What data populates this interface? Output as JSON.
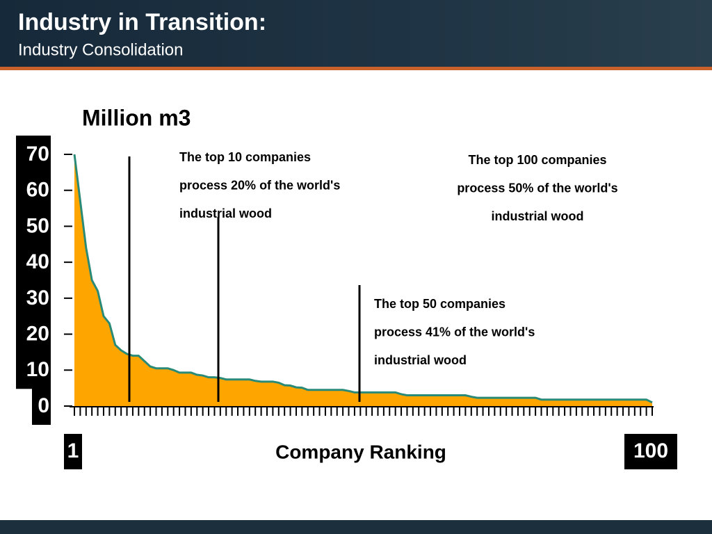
{
  "header": {
    "title": "Industry in Transition:",
    "subtitle": "Industry Consolidation"
  },
  "chart_data": {
    "type": "area",
    "y_label": "Million m3",
    "x_label": "Company Ranking",
    "x": [
      1,
      2,
      3,
      4,
      5,
      6,
      7,
      8,
      9,
      10,
      11,
      12,
      13,
      14,
      15,
      16,
      17,
      18,
      19,
      20,
      21,
      22,
      23,
      24,
      25,
      26,
      27,
      28,
      29,
      30,
      31,
      32,
      33,
      34,
      35,
      36,
      37,
      38,
      39,
      40,
      41,
      42,
      43,
      44,
      45,
      46,
      47,
      48,
      49,
      50,
      51,
      52,
      53,
      54,
      55,
      56,
      57,
      58,
      59,
      60,
      61,
      62,
      63,
      64,
      65,
      66,
      67,
      68,
      69,
      70,
      71,
      72,
      73,
      74,
      75,
      76,
      77,
      78,
      79,
      80,
      81,
      82,
      83,
      84,
      85,
      86,
      87,
      88,
      89,
      90,
      91,
      92,
      93,
      94,
      95,
      96,
      97,
      98,
      99,
      100
    ],
    "values": [
      70,
      57,
      44,
      35,
      32,
      25,
      23,
      17,
      15.5,
      14.5,
      14,
      14,
      12.5,
      11,
      10.5,
      10.5,
      10.5,
      10,
      9.3,
      9.3,
      9.3,
      8.7,
      8.5,
      8,
      8,
      7.8,
      7.4,
      7.4,
      7.4,
      7.4,
      7.4,
      7,
      6.8,
      6.8,
      6.8,
      6.5,
      5.8,
      5.7,
      5.2,
      5.1,
      4.5,
      4.5,
      4.5,
      4.5,
      4.5,
      4.5,
      4.5,
      4.2,
      3.8,
      3.8,
      3.8,
      3.8,
      3.8,
      3.8,
      3.8,
      3.8,
      3.3,
      3,
      3,
      3,
      3,
      3,
      3,
      3,
      3,
      3,
      3,
      3,
      2.6,
      2.3,
      2.3,
      2.3,
      2.3,
      2.3,
      2.3,
      2.3,
      2.3,
      2.3,
      2.3,
      2.3,
      1.8,
      1.8,
      1.8,
      1.8,
      1.8,
      1.8,
      1.8,
      1.8,
      1.8,
      1.8,
      1.8,
      1.8,
      1.8,
      1.8,
      1.8,
      1.8,
      1.8,
      1.8,
      1.8,
      1
    ],
    "color": "#ffa500",
    "line_color": "#2a8a78",
    "xlim": [
      1,
      100
    ],
    "xticks": [
      1,
      100
    ],
    "ylim": [
      0,
      70
    ],
    "yticks": [
      0,
      10,
      20,
      30,
      40,
      50,
      60,
      70
    ],
    "annotations": [
      [
        "The top 10 companies",
        "process 20% of the world's",
        "industrial wood"
      ],
      [
        "The top 100 companies",
        "process 50% of the world's",
        "industrial wood"
      ],
      [
        "The top 50 companies",
        "process 41% of the world's",
        "industrial wood"
      ]
    ]
  }
}
